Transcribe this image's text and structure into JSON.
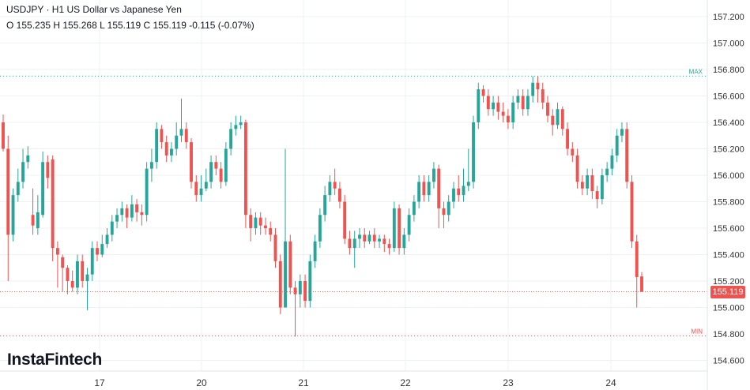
{
  "header": {
    "title": "USDJPY · H1 US Dollar vs Japanese Yen",
    "ohlc": "O 155.235 H 155.268 L 155.119 C 155.119  -0.115 (-0.07%)"
  },
  "logo": {
    "text": "InstaFintech"
  },
  "colors": {
    "up": "#26a69a",
    "down": "#ef5350",
    "grid": "#eef0f3",
    "axis_text": "#333333",
    "max_line": "#26a69a",
    "min_line": "#ef5350"
  },
  "chart_data": {
    "type": "candlestick",
    "symbol": "USDJPY",
    "timeframe": "H1",
    "y_ticks": [
      "157.200",
      "157.000",
      "156.800",
      "156.600",
      "156.400",
      "156.200",
      "156.000",
      "155.800",
      "155.600",
      "155.400",
      "155.200",
      "155.000",
      "154.800",
      "154.600"
    ],
    "x_ticks": [
      "17",
      "20",
      "21",
      "22",
      "23",
      "24"
    ],
    "y_range": [
      154.47,
      157.3
    ],
    "last_price": "155.119",
    "max_label": "MAX",
    "max_value": 156.75,
    "min_label": "MIN",
    "min_value": 154.785,
    "candles": [
      [
        156.4,
        156.2,
        156.46,
        156.18
      ],
      [
        156.2,
        155.55,
        156.3,
        155.2
      ],
      [
        155.55,
        155.85,
        155.9,
        155.5
      ],
      [
        155.85,
        155.95,
        156.05,
        155.8
      ],
      [
        155.95,
        156.1,
        156.2,
        155.9
      ],
      [
        156.1,
        156.15,
        156.22,
        156.05
      ],
      [
        155.7,
        155.62,
        155.9,
        155.55
      ],
      [
        155.6,
        155.72,
        155.85,
        155.55
      ],
      [
        155.7,
        156.1,
        156.18,
        155.68
      ],
      [
        156.1,
        155.98,
        156.15,
        155.9
      ],
      [
        156.12,
        155.45,
        156.15,
        155.35
      ],
      [
        155.45,
        155.4,
        155.5,
        155.15
      ],
      [
        155.38,
        155.3,
        155.4,
        155.12
      ],
      [
        155.3,
        155.2,
        155.32,
        155.1
      ],
      [
        155.2,
        155.15,
        155.28,
        155.12
      ],
      [
        155.15,
        155.35,
        155.4,
        155.1
      ],
      [
        155.35,
        155.2,
        155.4,
        155.15
      ],
      [
        155.2,
        155.25,
        155.3,
        154.98
      ],
      [
        155.25,
        155.45,
        155.5,
        155.2
      ],
      [
        155.45,
        155.4,
        155.5,
        155.35
      ],
      [
        155.4,
        155.48,
        155.55,
        155.38
      ],
      [
        155.48,
        155.55,
        155.6,
        155.45
      ],
      [
        155.55,
        155.65,
        155.7,
        155.5
      ],
      [
        155.65,
        155.7,
        155.75,
        155.6
      ],
      [
        155.7,
        155.75,
        155.8,
        155.65
      ],
      [
        155.75,
        155.68,
        155.78,
        155.6
      ],
      [
        155.68,
        155.78,
        155.85,
        155.65
      ],
      [
        155.78,
        155.72,
        155.82,
        155.65
      ],
      [
        155.72,
        155.7,
        155.78,
        155.62
      ],
      [
        155.7,
        156.05,
        156.1,
        155.65
      ],
      [
        156.05,
        156.1,
        156.2,
        155.95
      ],
      [
        156.1,
        156.35,
        156.4,
        156.05
      ],
      [
        156.35,
        156.25,
        156.38,
        156.2
      ],
      [
        156.25,
        156.15,
        156.3,
        156.1
      ],
      [
        156.15,
        156.2,
        156.25,
        156.1
      ],
      [
        156.2,
        156.3,
        156.4,
        156.15
      ],
      [
        156.3,
        156.35,
        156.58,
        156.25
      ],
      [
        156.35,
        156.25,
        156.4,
        156.2
      ],
      [
        156.25,
        155.95,
        156.28,
        155.9
      ],
      [
        155.95,
        155.85,
        156.0,
        155.8
      ],
      [
        155.85,
        155.9,
        156.0,
        155.8
      ],
      [
        155.9,
        155.95,
        156.05,
        155.88
      ],
      [
        155.95,
        156.1,
        156.15,
        155.9
      ],
      [
        156.1,
        156.05,
        156.15,
        156.0
      ],
      [
        156.05,
        155.95,
        156.1,
        155.9
      ],
      [
        155.95,
        156.2,
        156.25,
        155.92
      ],
      [
        156.2,
        156.35,
        156.4,
        156.15
      ],
      [
        156.35,
        156.38,
        156.45,
        156.3
      ],
      [
        156.38,
        156.4,
        156.45,
        156.35
      ],
      [
        156.4,
        155.7,
        156.42,
        155.6
      ],
      [
        155.7,
        155.6,
        155.75,
        155.5
      ],
      [
        155.6,
        155.68,
        155.72,
        155.55
      ],
      [
        155.68,
        155.62,
        155.72,
        155.55
      ],
      [
        155.62,
        155.6,
        155.68,
        155.55
      ],
      [
        155.6,
        155.55,
        155.65,
        155.5
      ],
      [
        155.55,
        155.35,
        155.6,
        155.3
      ],
      [
        155.35,
        155.0,
        155.4,
        154.95
      ],
      [
        155.0,
        155.5,
        156.2,
        155.0
      ],
      [
        155.5,
        155.15,
        155.55,
        155.1
      ],
      [
        155.15,
        155.1,
        155.2,
        154.78
      ],
      [
        155.1,
        155.2,
        155.25,
        155.0
      ],
      [
        155.2,
        155.05,
        155.25,
        155.0
      ],
      [
        155.05,
        155.35,
        155.4,
        155.0
      ],
      [
        155.35,
        155.5,
        155.55,
        155.3
      ],
      [
        155.5,
        155.7,
        155.75,
        155.45
      ],
      [
        155.7,
        155.85,
        155.92,
        155.65
      ],
      [
        155.85,
        155.95,
        156.0,
        155.8
      ],
      [
        155.95,
        155.9,
        156.05,
        155.85
      ],
      [
        155.9,
        155.8,
        155.95,
        155.75
      ],
      [
        155.8,
        155.52,
        155.85,
        155.48
      ],
      [
        155.52,
        155.45,
        155.58,
        155.4
      ],
      [
        155.45,
        155.52,
        155.58,
        155.3
      ],
      [
        155.52,
        155.55,
        155.6,
        155.45
      ],
      [
        155.55,
        155.5,
        155.6,
        155.45
      ],
      [
        155.5,
        155.55,
        155.58,
        155.48
      ],
      [
        155.55,
        155.5,
        155.6,
        155.45
      ],
      [
        155.5,
        155.52,
        155.55,
        155.45
      ],
      [
        155.52,
        155.48,
        155.55,
        155.42
      ],
      [
        155.48,
        155.45,
        155.52,
        155.4
      ],
      [
        155.45,
        155.75,
        155.8,
        155.42
      ],
      [
        155.75,
        155.45,
        155.78,
        155.4
      ],
      [
        155.45,
        155.55,
        155.6,
        155.4
      ],
      [
        155.55,
        155.7,
        155.75,
        155.5
      ],
      [
        155.7,
        155.8,
        155.85,
        155.65
      ],
      [
        155.8,
        155.95,
        156.0,
        155.75
      ],
      [
        155.95,
        155.85,
        156.0,
        155.8
      ],
      [
        155.85,
        155.95,
        156.0,
        155.8
      ],
      [
        155.95,
        156.05,
        156.1,
        155.9
      ],
      [
        156.05,
        155.75,
        156.08,
        155.6
      ],
      [
        155.75,
        155.7,
        155.8,
        155.6
      ],
      [
        155.7,
        155.8,
        155.85,
        155.65
      ],
      [
        155.8,
        155.9,
        155.95,
        155.75
      ],
      [
        155.9,
        155.85,
        156.0,
        155.8
      ],
      [
        155.85,
        155.92,
        156.05,
        155.8
      ],
      [
        155.92,
        155.95,
        156.2,
        155.88
      ],
      [
        155.95,
        156.4,
        156.45,
        155.9
      ],
      [
        156.4,
        156.65,
        156.7,
        156.35
      ],
      [
        156.65,
        156.6,
        156.68,
        156.55
      ],
      [
        156.6,
        156.5,
        156.65,
        156.45
      ],
      [
        156.5,
        156.55,
        156.6,
        156.45
      ],
      [
        156.55,
        156.48,
        156.6,
        156.42
      ],
      [
        156.48,
        156.45,
        156.55,
        156.4
      ],
      [
        156.45,
        156.4,
        156.5,
        156.35
      ],
      [
        156.4,
        156.55,
        156.6,
        156.35
      ],
      [
        156.55,
        156.6,
        156.65,
        156.5
      ],
      [
        156.6,
        156.5,
        156.65,
        156.45
      ],
      [
        156.5,
        156.6,
        156.65,
        156.45
      ],
      [
        156.6,
        156.7,
        156.75,
        156.55
      ],
      [
        156.7,
        156.65,
        156.75,
        156.55
      ],
      [
        156.65,
        156.55,
        156.7,
        156.5
      ],
      [
        156.55,
        156.45,
        156.6,
        156.4
      ],
      [
        156.45,
        156.38,
        156.5,
        156.3
      ],
      [
        156.38,
        156.5,
        156.55,
        156.35
      ],
      [
        156.5,
        156.35,
        156.52,
        156.3
      ],
      [
        156.35,
        156.2,
        156.4,
        156.15
      ],
      [
        156.2,
        156.15,
        156.25,
        156.1
      ],
      [
        156.15,
        155.95,
        156.2,
        155.9
      ],
      [
        155.95,
        155.9,
        156.0,
        155.85
      ],
      [
        155.9,
        156.0,
        156.05,
        155.85
      ],
      [
        156.0,
        155.88,
        156.05,
        155.82
      ],
      [
        155.88,
        155.82,
        155.92,
        155.75
      ],
      [
        155.82,
        156.0,
        156.05,
        155.78
      ],
      [
        156.0,
        156.05,
        156.1,
        155.95
      ],
      [
        156.05,
        156.15,
        156.2,
        156.0
      ],
      [
        156.15,
        156.3,
        156.35,
        156.1
      ],
      [
        156.3,
        156.35,
        156.4,
        156.25
      ],
      [
        156.35,
        155.95,
        156.4,
        155.9
      ],
      [
        155.95,
        155.5,
        156.0,
        155.45
      ],
      [
        155.5,
        155.23,
        155.55,
        155.0
      ],
      [
        155.235,
        155.119,
        155.268,
        155.119
      ]
    ]
  }
}
